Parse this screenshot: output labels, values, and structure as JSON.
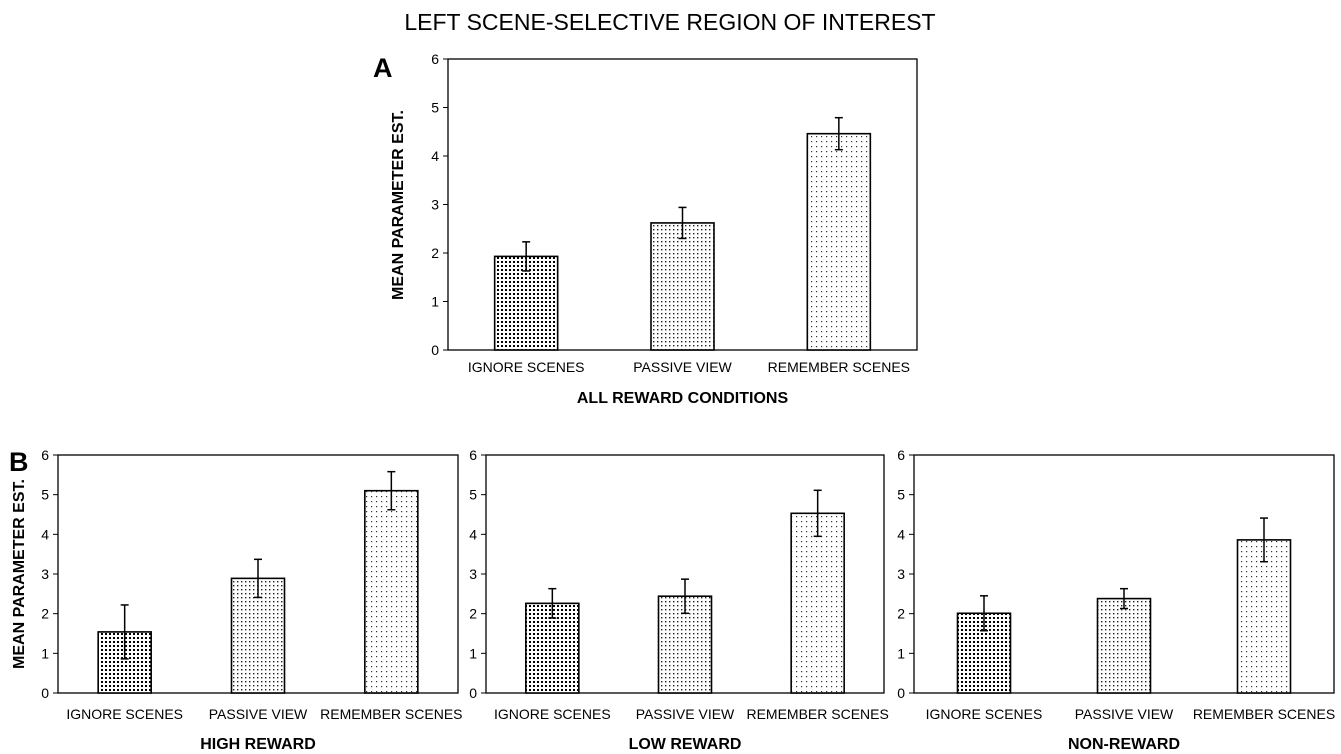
{
  "figure": {
    "title": "LEFT SCENE-SELECTIVE REGION OF INTEREST"
  },
  "chart_data": [
    {
      "panel": "A",
      "type": "bar",
      "categories": [
        "IGNORE SCENES",
        "PASSIVE VIEW",
        "REMEMBER SCENES"
      ],
      "values": [
        1.93,
        2.62,
        4.46
      ],
      "error": [
        0.3,
        0.32,
        0.33
      ],
      "xlabel": "ALL REWARD CONDITIONS",
      "ylabel": "MEAN PARAMETER EST.",
      "ylim": [
        0,
        6
      ],
      "yticks": [
        0,
        1,
        2,
        3,
        4,
        5,
        6
      ],
      "grid": false
    },
    {
      "panel": "B",
      "type": "bar",
      "categories": [
        "IGNORE SCENES",
        "PASSIVE VIEW",
        "REMEMBER SCENES"
      ],
      "values": [
        1.54,
        2.89,
        5.1
      ],
      "error": [
        0.68,
        0.48,
        0.48
      ],
      "xlabel": "HIGH REWARD",
      "ylabel": "MEAN PARAMETER EST.",
      "ylim": [
        0,
        6
      ],
      "yticks": [
        0,
        1,
        2,
        3,
        4,
        5,
        6
      ],
      "grid": false
    },
    {
      "panel": "",
      "type": "bar",
      "categories": [
        "IGNORE SCENES",
        "PASSIVE VIEW",
        "REMEMBER SCENES"
      ],
      "values": [
        2.26,
        2.44,
        4.53
      ],
      "error": [
        0.37,
        0.43,
        0.58
      ],
      "xlabel": "LOW REWARD",
      "ylabel": "",
      "ylim": [
        0,
        6
      ],
      "yticks": [
        0,
        1,
        2,
        3,
        4,
        5,
        6
      ],
      "grid": false
    },
    {
      "panel": "",
      "type": "bar",
      "categories": [
        "IGNORE SCENES",
        "PASSIVE VIEW",
        "REMEMBER SCENES"
      ],
      "values": [
        2.01,
        2.38,
        3.86
      ],
      "error": [
        0.44,
        0.25,
        0.55
      ],
      "xlabel": "NON-REWARD",
      "ylabel": "",
      "ylim": [
        0,
        6
      ],
      "yticks": [
        0,
        1,
        2,
        3,
        4,
        5,
        6
      ],
      "grid": false
    }
  ]
}
